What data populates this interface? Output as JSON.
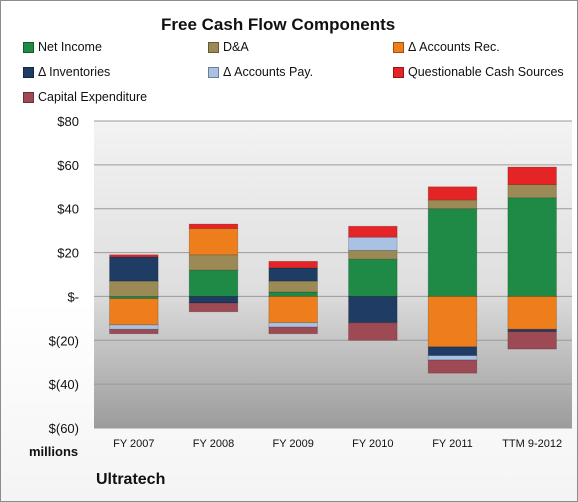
{
  "chart_data": {
    "type": "bar",
    "stacked": true,
    "title": "Free Cash Flow Components",
    "categories": [
      "FY 2007",
      "FY 2008",
      "FY 2009",
      "FY 2010",
      "FY 2011",
      "TTM 9-2012"
    ],
    "y_unit": "millions",
    "ylim": [
      -60,
      80
    ],
    "yticks": [
      "$80",
      "$60",
      "$40",
      "$20",
      "$-",
      "$(20)",
      "$(40)",
      "$(60)"
    ],
    "ytick_values": [
      80,
      60,
      40,
      20,
      0,
      -20,
      -40,
      -60
    ],
    "grid": true,
    "legend_position": "top",
    "series": [
      {
        "name": "Net Income",
        "color": "#1e8a45",
        "values": [
          -1,
          12,
          2,
          17,
          40,
          45
        ]
      },
      {
        "name": "D&A",
        "color": "#9b8a55",
        "values": [
          7,
          7,
          5,
          4,
          4,
          6
        ]
      },
      {
        "name": "Δ Accounts Rec.",
        "color": "#ee7d1c",
        "values": [
          -12,
          12,
          -12,
          0,
          -23,
          -15
        ]
      },
      {
        "name": "Δ Inventories",
        "color": "#1f3c64",
        "values": [
          11,
          -3,
          6,
          -12,
          -4,
          -1
        ]
      },
      {
        "name": "Δ Accounts Pay.",
        "color": "#a9c2e3",
        "values": [
          -2,
          0,
          -2,
          6,
          -2,
          0
        ]
      },
      {
        "name": "Questionable Cash Sources",
        "color": "#e52425",
        "values": [
          1,
          2,
          3,
          5,
          6,
          8
        ]
      },
      {
        "name": "Capital Expenditure",
        "color": "#9e4a55",
        "values": [
          -2,
          -4,
          -3,
          -8,
          -6,
          -8
        ]
      }
    ]
  },
  "footer": {
    "company": "Ultratech"
  }
}
